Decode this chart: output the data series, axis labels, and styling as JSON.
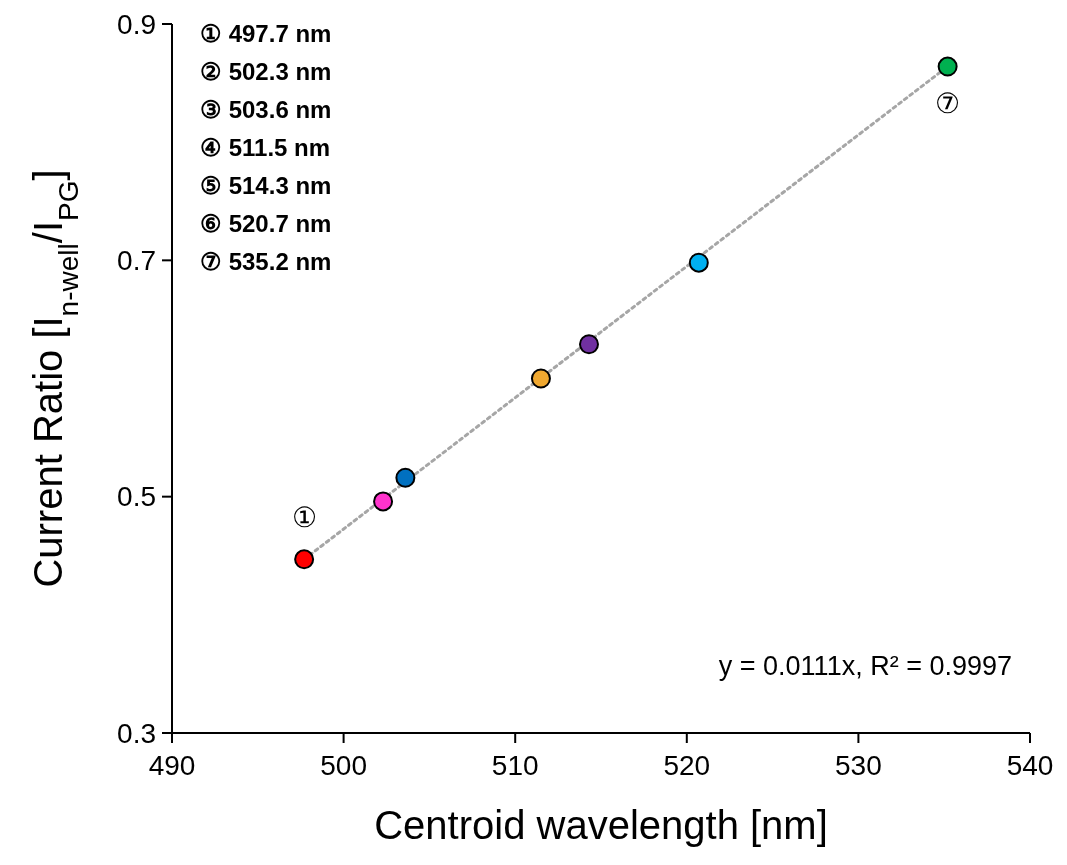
{
  "chart_data": {
    "type": "scatter",
    "xlabel": "Centroid wavelength [nm]",
    "ylabel": "Current Ratio [I$_{n-well}$/I$_{PG}$]",
    "xlim": [
      490,
      540
    ],
    "xticks": [
      490,
      500,
      510,
      520,
      530,
      540
    ],
    "ylim": [
      0.3,
      0.9
    ],
    "yticks": [
      {
        "value": 0.3,
        "label": "0.3"
      },
      {
        "value": 0.5,
        "label": "0.5"
      },
      {
        "value": 0.7,
        "label": "0.7"
      },
      {
        "value": 0.9,
        "label": "0.9"
      }
    ],
    "grid": false,
    "marker": "circle",
    "series": [
      {
        "type": "line",
        "x": [
          497.7,
          535.2
        ],
        "values": [
          0.447,
          0.864
        ],
        "color": "#a6a6a6",
        "line_style": "dotted",
        "marker": "none"
      },
      {
        "x": [
          497.7,
          502.3,
          503.6,
          511.5,
          514.3,
          520.7,
          535.2
        ],
        "values": [
          0.447,
          0.496,
          0.516,
          0.6,
          0.629,
          0.698,
          0.864
        ],
        "colors": [
          "#ff0000",
          "#ff33cc",
          "#0070c0",
          "#f0a830",
          "#7030a0",
          "#00b0f0",
          "#00b050"
        ]
      }
    ],
    "annotations": [
      "① 497.7 nm",
      "② 502.3 nm",
      "③ 503.6 nm",
      "④ 511.5 nm",
      "⑤ 514.3 nm",
      "⑥ 520.7 nm",
      "⑦ 535.2 nm",
      {
        "text": "①",
        "x": 497.7,
        "y": 0.447
      },
      {
        "text": "⑦",
        "x": 535.2,
        "y": 0.864
      },
      "y = 0.0111x, R² = 0.9997"
    ]
  }
}
